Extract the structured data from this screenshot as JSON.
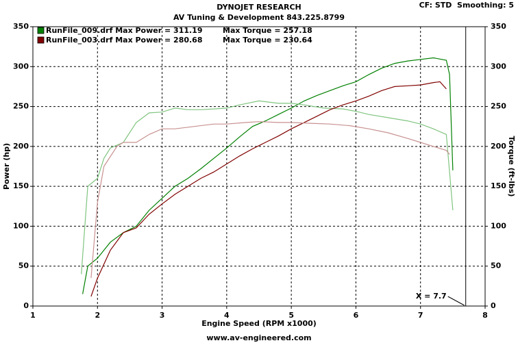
{
  "chart_data": {
    "type": "line",
    "title": "DYNOJET RESEARCH",
    "subtitle": "AV Tuning & Development 843.225.8799",
    "settings_text": "CF: STD  Smoothing: 5",
    "footer": "www.av-engineered.com",
    "x_label": "Engine Speed (RPM x1000)",
    "y_label": "Power (hp)",
    "y2_label": "Torque (ft-lbs)",
    "xlim": [
      1,
      8
    ],
    "xticks": [
      1,
      2,
      3,
      4,
      5,
      6,
      7,
      8
    ],
    "ylim": [
      0,
      350
    ],
    "yticks": [
      0,
      50,
      100,
      150,
      200,
      250,
      300,
      350
    ],
    "y2lim": [
      0,
      350
    ],
    "y2ticks": [
      0,
      50,
      100,
      150,
      200,
      250,
      300,
      350
    ],
    "grid": true,
    "cursor": {
      "label": "X = 7.7",
      "x": 7.7
    },
    "series": [
      {
        "name": "RunFile_009.drf Max Power = 311.19",
        "color": "#008000",
        "x": [
          1.77,
          1.85,
          2.0,
          2.2,
          2.4,
          2.6,
          2.8,
          3.0,
          3.2,
          3.4,
          3.6,
          3.8,
          4.0,
          4.2,
          4.4,
          4.6,
          4.8,
          5.0,
          5.2,
          5.4,
          5.6,
          5.8,
          6.0,
          6.2,
          6.4,
          6.6,
          6.8,
          7.0,
          7.2,
          7.4,
          7.45,
          7.5
        ],
        "values": [
          15,
          50,
          60,
          80,
          92,
          100,
          120,
          135,
          150,
          160,
          172,
          185,
          198,
          212,
          225,
          232,
          240,
          248,
          257,
          264,
          270,
          276,
          281,
          290,
          298,
          304,
          307,
          309,
          311,
          308,
          290,
          170
        ]
      },
      {
        "name": "Max Torque = 257.18",
        "color": "#7fc47f",
        "axis": "y2",
        "x": [
          1.75,
          1.85,
          2.0,
          2.1,
          2.2,
          2.4,
          2.6,
          2.8,
          3.0,
          3.2,
          3.4,
          3.6,
          3.8,
          4.0,
          4.2,
          4.5,
          4.8,
          5.0,
          5.2,
          5.5,
          5.8,
          6.0,
          6.2,
          6.5,
          6.8,
          7.0,
          7.2,
          7.4,
          7.5
        ],
        "values": [
          40,
          150,
          160,
          185,
          198,
          205,
          230,
          242,
          243,
          248,
          246,
          246,
          247,
          248,
          252,
          257,
          254,
          254,
          252,
          248,
          247,
          244,
          240,
          236,
          232,
          228,
          222,
          215,
          120
        ]
      },
      {
        "name": "RunFile_003.drf Max Power = 280.68",
        "color": "#800000",
        "x": [
          1.9,
          2.0,
          2.2,
          2.4,
          2.6,
          2.8,
          3.0,
          3.2,
          3.4,
          3.6,
          3.8,
          4.0,
          4.2,
          4.4,
          4.6,
          4.8,
          5.0,
          5.2,
          5.4,
          5.6,
          5.8,
          6.0,
          6.2,
          6.4,
          6.6,
          6.8,
          7.0,
          7.2,
          7.3,
          7.4
        ],
        "values": [
          12,
          35,
          70,
          92,
          98,
          115,
          128,
          140,
          150,
          160,
          168,
          178,
          188,
          197,
          205,
          213,
          222,
          230,
          238,
          246,
          252,
          257,
          263,
          270,
          275,
          276,
          277,
          280,
          281,
          272
        ]
      },
      {
        "name": "Max Torque = 230.64",
        "color": "#c89090",
        "axis": "y2",
        "x": [
          1.9,
          2.0,
          2.1,
          2.3,
          2.4,
          2.6,
          2.8,
          3.0,
          3.2,
          3.5,
          3.8,
          4.0,
          4.3,
          4.5,
          4.8,
          5.0,
          5.3,
          5.6,
          5.9,
          6.2,
          6.5,
          6.8,
          7.0,
          7.2,
          7.4,
          7.45
        ],
        "values": [
          35,
          130,
          175,
          200,
          205,
          205,
          215,
          222,
          222,
          225,
          228,
          228,
          230,
          231,
          230,
          230,
          229,
          228,
          226,
          222,
          217,
          210,
          205,
          200,
          195,
          190
        ]
      }
    ]
  }
}
